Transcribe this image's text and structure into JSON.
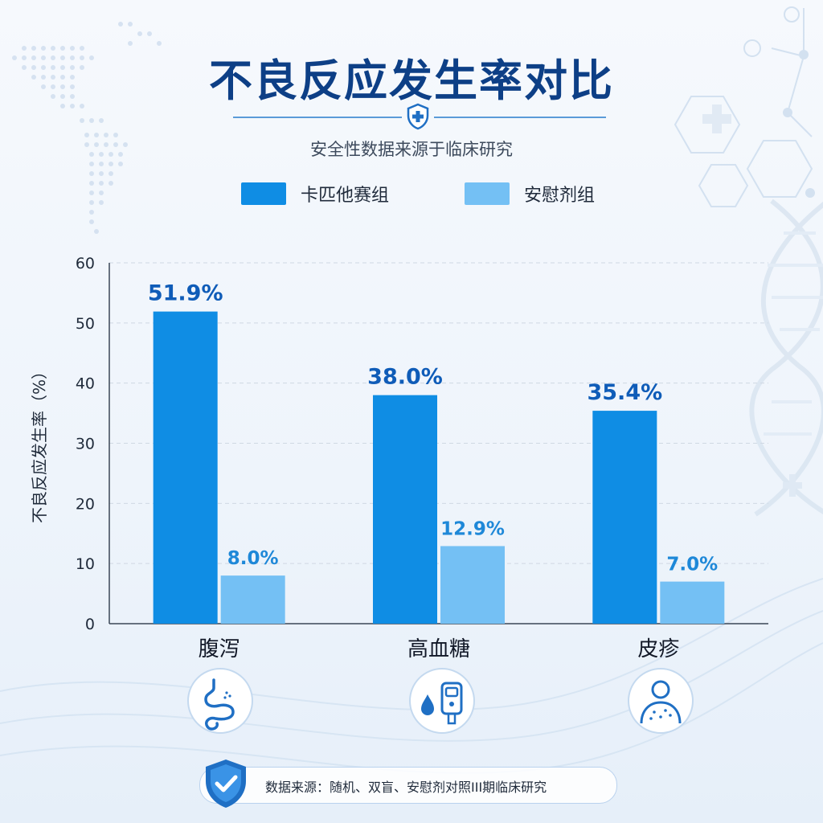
{
  "title": "不良反应发生率对比",
  "subtitle": "安全性数据来源于临床研究",
  "footer": {
    "source": "数据来源：随机、双盲、安慰剂对照III期临床研究"
  },
  "colors": {
    "drug": "#0f8de4",
    "placebo": "#74c0f4",
    "label_drug": "#0f5cb8",
    "label_placebo": "#1e88d8",
    "title": "#0d3f86"
  },
  "icons": [
    "intestine-icon",
    "blood-glucose-meter-icon",
    "skin-rash-icon"
  ],
  "chart_data": {
    "type": "bar",
    "title": "不良反应发生率对比",
    "subtitle": "安全性数据来源于临床研究",
    "ylabel": "不良反应发生率（%）",
    "xlabel": "",
    "ylim": [
      0,
      60
    ],
    "yticks": [
      0,
      10,
      20,
      30,
      40,
      50,
      60
    ],
    "categories": [
      "腹泻",
      "高血糖",
      "皮疹"
    ],
    "series": [
      {
        "name": "卡匹他赛组",
        "values": [
          51.9,
          38.0,
          35.4
        ],
        "labels": [
          "51.9%",
          "38.0%",
          "35.4%"
        ]
      },
      {
        "name": "安慰剂组",
        "values": [
          8.0,
          12.9,
          7.0
        ],
        "labels": [
          "8.0%",
          "12.9%",
          "7.0%"
        ]
      }
    ],
    "grid": "horizontal dashed",
    "legend": "top-center"
  }
}
